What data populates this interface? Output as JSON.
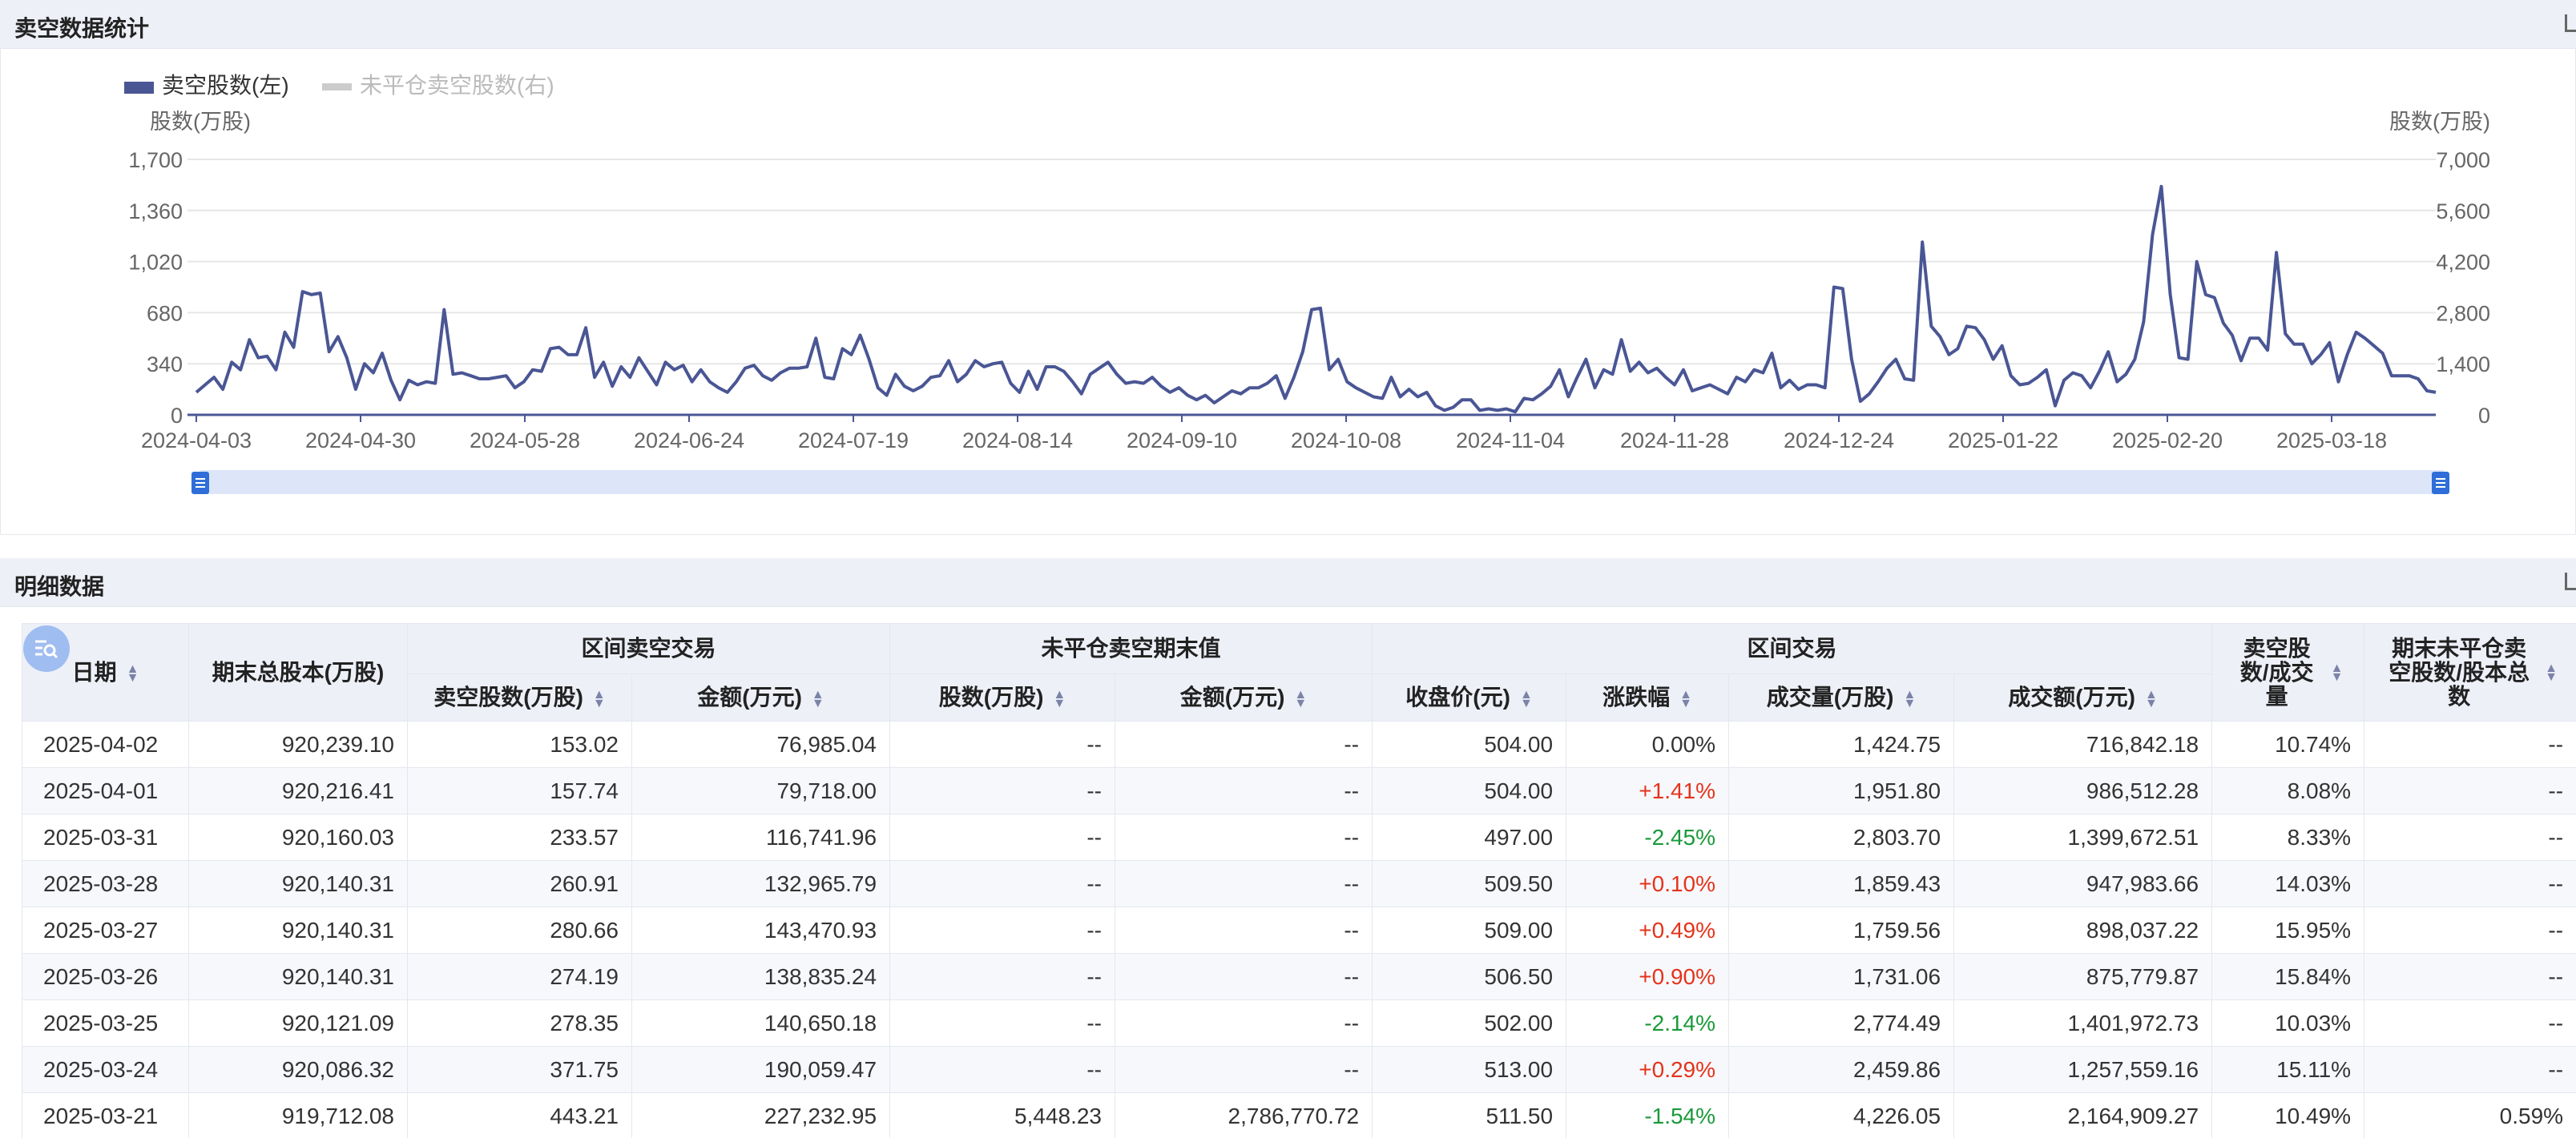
{
  "section1": {
    "title": "卖空数据统计"
  },
  "section2": {
    "title": "明细数据"
  },
  "chart_data": {
    "type": "line",
    "legend": [
      {
        "label": "卖空股数(左)",
        "color": "#4a5694",
        "active": true
      },
      {
        "label": "未平仓卖空股数(右)",
        "color": "#cccccc",
        "active": false
      }
    ],
    "left_axis": {
      "label": "股数(万股)",
      "ticks": [
        0,
        340,
        680,
        1020,
        1360,
        1700
      ],
      "tick_labels": [
        "0",
        "340",
        "680",
        "1,020",
        "1,360",
        "1,700"
      ],
      "range": [
        0,
        1700
      ]
    },
    "right_axis": {
      "label": "股数(万股)",
      "ticks": [
        0,
        1400,
        2800,
        4200,
        5600,
        7000
      ],
      "tick_labels": [
        "0",
        "1,400",
        "2,800",
        "4,200",
        "5,600",
        "7,000"
      ],
      "range": [
        0,
        7000
      ]
    },
    "x_tick_labels": [
      "2024-04-03",
      "2024-04-30",
      "2024-05-28",
      "2024-06-24",
      "2024-07-19",
      "2024-08-14",
      "2024-09-10",
      "2024-10-08",
      "2024-11-04",
      "2024-11-28",
      "2024-12-24",
      "2025-01-22",
      "2025-02-20",
      "2025-03-18"
    ],
    "legend_position": "top-left",
    "grid": true,
    "series": [
      {
        "name": "卖空股数(左)",
        "values": [
          150,
          200,
          250,
          170,
          350,
          300,
          500,
          380,
          390,
          300,
          550,
          450,
          820,
          800,
          810,
          420,
          520,
          380,
          170,
          340,
          280,
          410,
          230,
          100,
          230,
          200,
          220,
          210,
          700,
          270,
          280,
          260,
          240,
          240,
          250,
          260,
          180,
          220,
          300,
          290,
          440,
          450,
          400,
          400,
          580,
          250,
          350,
          190,
          320,
          250,
          380,
          290,
          200,
          350,
          300,
          330,
          220,
          300,
          220,
          180,
          150,
          220,
          310,
          330,
          260,
          230,
          280,
          310,
          310,
          320,
          510,
          250,
          240,
          440,
          400,
          530,
          370,
          180,
          130,
          270,
          190,
          160,
          190,
          250,
          260,
          360,
          220,
          270,
          360,
          320,
          340,
          350,
          210,
          150,
          290,
          170,
          320,
          320,
          290,
          220,
          140,
          270,
          310,
          350,
          270,
          210,
          220,
          210,
          250,
          190,
          150,
          180,
          130,
          100,
          130,
          80,
          120,
          160,
          140,
          180,
          180,
          210,
          260,
          110,
          250,
          420,
          700,
          710,
          300,
          370,
          220,
          180,
          150,
          120,
          110,
          250,
          120,
          170,
          120,
          150,
          60,
          30,
          50,
          100,
          100,
          30,
          40,
          30,
          40,
          20,
          110,
          100,
          140,
          190,
          300,
          120,
          250,
          370,
          180,
          300,
          270,
          500,
          290,
          350,
          280,
          310,
          250,
          200,
          300,
          160,
          180,
          200,
          170,
          140,
          250,
          220,
          300,
          280,
          410,
          180,
          230,
          170,
          200,
          200,
          180,
          850,
          840,
          370,
          90,
          140,
          220,
          310,
          370,
          240,
          230,
          1150,
          590,
          520,
          400,
          440,
          590,
          580,
          500,
          370,
          460,
          260,
          200,
          210,
          250,
          300,
          60,
          230,
          280,
          260,
          180,
          290,
          420,
          220,
          270,
          370,
          620,
          1200,
          1520,
          800,
          380,
          370,
          1020,
          800,
          780,
          610,
          530,
          360,
          510,
          510,
          430,
          1080,
          540,
          470,
          470,
          340,
          400,
          480,
          220,
          400,
          550,
          510,
          460,
          410,
          260,
          260,
          260,
          240,
          160,
          150
        ]
      }
    ]
  },
  "scroll_slider": {
    "start": 0,
    "end": 1
  },
  "table": {
    "group_headers": [
      "区间卖空交易",
      "未平仓卖空期末值",
      "区间交易"
    ],
    "headers": {
      "date": "日期",
      "total_shares": "期末总股本(万股)",
      "short_shares": "卖空股数(万股)",
      "short_amount": "金额(万元)",
      "open_shares": "股数(万股)",
      "open_amount": "金额(万元)",
      "close": "收盘价(元)",
      "change": "涨跌幅",
      "volume": "成交量(万股)",
      "turnover": "成交额(万元)",
      "ratio_volume": "卖空股数/成交量",
      "ratio_capital": "期末未平仓卖空股数/股本总数"
    },
    "rows": [
      {
        "date": "2025-04-02",
        "total_shares": "920,239.10",
        "short_shares": "153.02",
        "short_amount": "76,985.04",
        "open_shares": "--",
        "open_amount": "--",
        "close": "504.00",
        "change": "0.00%",
        "dir": "flat",
        "volume": "1,424.75",
        "turnover": "716,842.18",
        "ratio_volume": "10.74%",
        "ratio_capital": "--"
      },
      {
        "date": "2025-04-01",
        "total_shares": "920,216.41",
        "short_shares": "157.74",
        "short_amount": "79,718.00",
        "open_shares": "--",
        "open_amount": "--",
        "close": "504.00",
        "change": "+1.41%",
        "dir": "up",
        "volume": "1,951.80",
        "turnover": "986,512.28",
        "ratio_volume": "8.08%",
        "ratio_capital": "--"
      },
      {
        "date": "2025-03-31",
        "total_shares": "920,160.03",
        "short_shares": "233.57",
        "short_amount": "116,741.96",
        "open_shares": "--",
        "open_amount": "--",
        "close": "497.00",
        "change": "-2.45%",
        "dir": "down",
        "volume": "2,803.70",
        "turnover": "1,399,672.51",
        "ratio_volume": "8.33%",
        "ratio_capital": "--"
      },
      {
        "date": "2025-03-28",
        "total_shares": "920,140.31",
        "short_shares": "260.91",
        "short_amount": "132,965.79",
        "open_shares": "--",
        "open_amount": "--",
        "close": "509.50",
        "change": "+0.10%",
        "dir": "up",
        "volume": "1,859.43",
        "turnover": "947,983.66",
        "ratio_volume": "14.03%",
        "ratio_capital": "--"
      },
      {
        "date": "2025-03-27",
        "total_shares": "920,140.31",
        "short_shares": "280.66",
        "short_amount": "143,470.93",
        "open_shares": "--",
        "open_amount": "--",
        "close": "509.00",
        "change": "+0.49%",
        "dir": "up",
        "volume": "1,759.56",
        "turnover": "898,037.22",
        "ratio_volume": "15.95%",
        "ratio_capital": "--"
      },
      {
        "date": "2025-03-26",
        "total_shares": "920,140.31",
        "short_shares": "274.19",
        "short_amount": "138,835.24",
        "open_shares": "--",
        "open_amount": "--",
        "close": "506.50",
        "change": "+0.90%",
        "dir": "up",
        "volume": "1,731.06",
        "turnover": "875,779.87",
        "ratio_volume": "15.84%",
        "ratio_capital": "--"
      },
      {
        "date": "2025-03-25",
        "total_shares": "920,121.09",
        "short_shares": "278.35",
        "short_amount": "140,650.18",
        "open_shares": "--",
        "open_amount": "--",
        "close": "502.00",
        "change": "-2.14%",
        "dir": "down",
        "volume": "2,774.49",
        "turnover": "1,401,972.73",
        "ratio_volume": "10.03%",
        "ratio_capital": "--"
      },
      {
        "date": "2025-03-24",
        "total_shares": "920,086.32",
        "short_shares": "371.75",
        "short_amount": "190,059.47",
        "open_shares": "--",
        "open_amount": "--",
        "close": "513.00",
        "change": "+0.29%",
        "dir": "up",
        "volume": "2,459.86",
        "turnover": "1,257,559.16",
        "ratio_volume": "15.11%",
        "ratio_capital": "--"
      },
      {
        "date": "2025-03-21",
        "total_shares": "919,712.08",
        "short_shares": "443.21",
        "short_amount": "227,232.95",
        "open_shares": "5,448.23",
        "open_amount": "2,786,770.72",
        "close": "511.50",
        "change": "-1.54%",
        "dir": "down",
        "volume": "4,226.05",
        "turnover": "2,164,909.27",
        "ratio_volume": "10.49%",
        "ratio_capital": "0.59%"
      }
    ]
  }
}
